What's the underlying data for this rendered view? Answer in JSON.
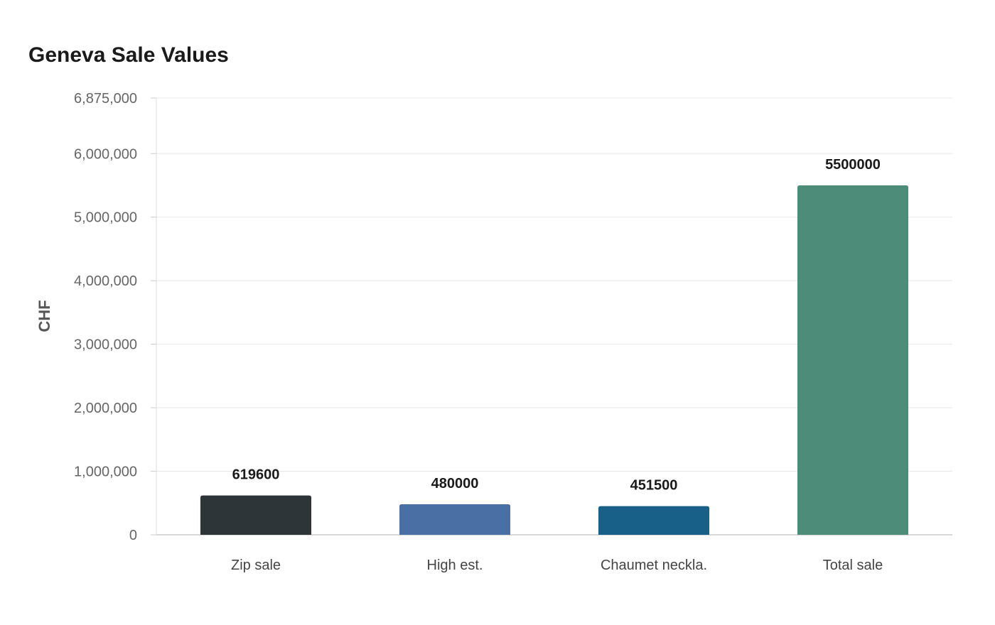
{
  "chart_data": {
    "type": "bar",
    "title": "Geneva Sale Values",
    "xlabel": "",
    "ylabel": "CHF",
    "ylim": [
      0,
      6875000
    ],
    "yticks": [
      0,
      1000000,
      2000000,
      3000000,
      4000000,
      5000000,
      6000000,
      6875000
    ],
    "ytick_labels": [
      "0",
      "1,000,000",
      "2,000,000",
      "3,000,000",
      "4,000,000",
      "5,000,000",
      "6,000,000",
      "6,875,000"
    ],
    "grid": true,
    "categories": [
      "Zip sale",
      "High est.",
      "Chaumet neckla.",
      "Total sale"
    ],
    "values": [
      619600,
      480000,
      451500,
      5500000
    ],
    "value_labels": [
      "619600",
      "480000",
      "451500",
      "5500000"
    ],
    "colors": [
      "#2e3538",
      "#4a6fa5",
      "#186087",
      "#4e8c7a"
    ]
  }
}
